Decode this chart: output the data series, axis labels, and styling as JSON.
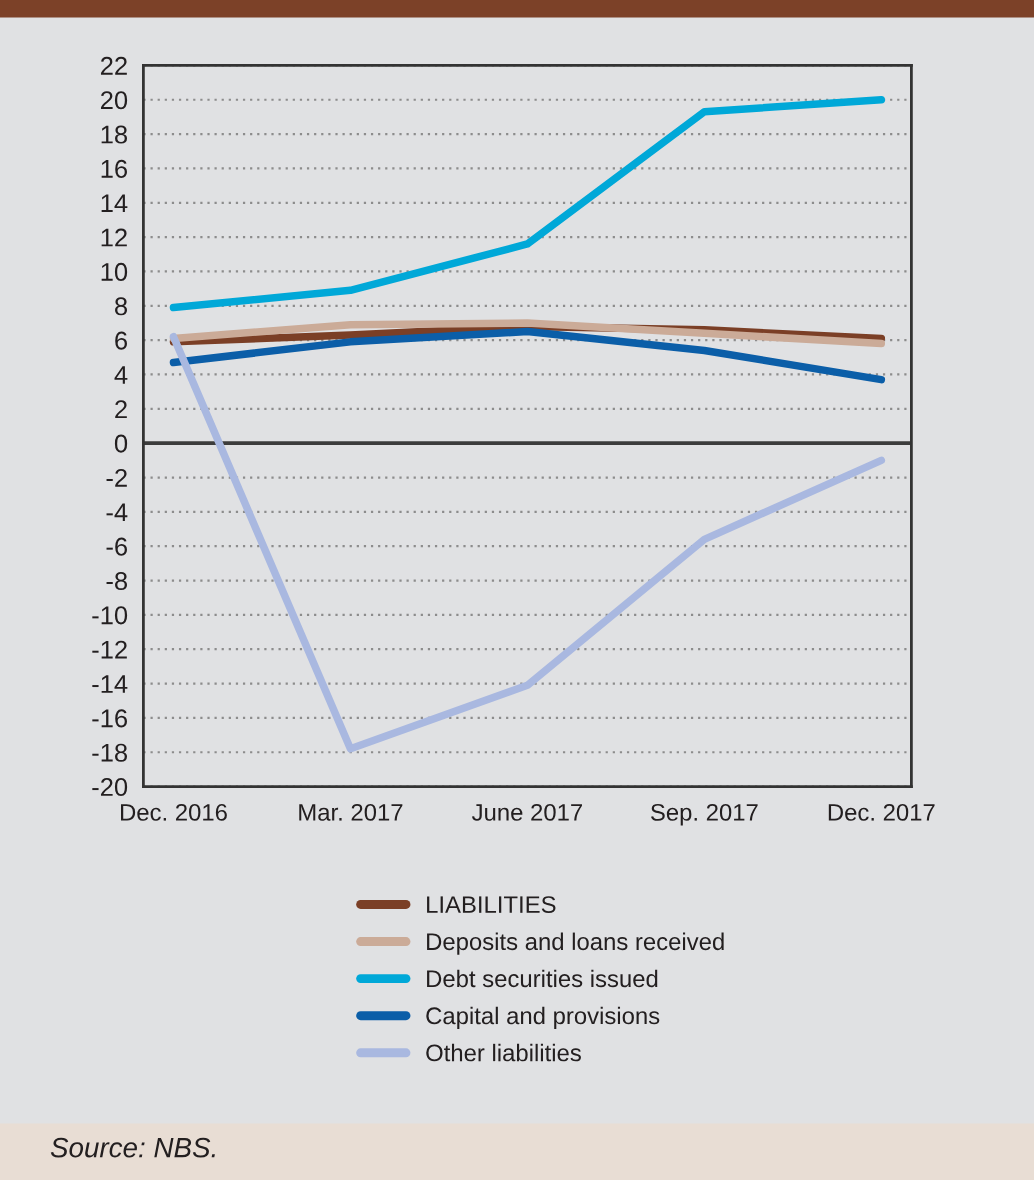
{
  "chart_data": {
    "type": "line",
    "categories": [
      "Dec. 2016",
      "Mar. 2017",
      "June 2017",
      "Sep. 2017",
      "Dec. 2017"
    ],
    "series": [
      {
        "name": "LIABILITIES",
        "color": "#7b3f26",
        "values": [
          5.9,
          6.3,
          6.8,
          6.6,
          6.1
        ]
      },
      {
        "name": "Deposits and loans received",
        "color": "#cbab98",
        "values": [
          6.1,
          6.9,
          7.0,
          6.4,
          5.8
        ]
      },
      {
        "name": "Debt securities issued",
        "color": "#00a8d8",
        "values": [
          7.9,
          8.9,
          11.6,
          19.3,
          20.0
        ]
      },
      {
        "name": "Capital and provisions",
        "color": "#0b5ea8",
        "values": [
          4.7,
          5.9,
          6.5,
          5.4,
          3.7
        ]
      },
      {
        "name": "Other liabilities",
        "color": "#a9b8e0",
        "values": [
          6.2,
          -17.8,
          -14.1,
          -5.6,
          -1.0
        ]
      }
    ],
    "ylim": [
      -20,
      22
    ],
    "yticks": [
      -20,
      -18,
      -16,
      -14,
      -12,
      -10,
      -8,
      -6,
      -4,
      -2,
      0,
      2,
      4,
      6,
      8,
      10,
      12,
      14,
      16,
      18,
      20,
      22
    ],
    "grid": "y",
    "legend": "bottom",
    "ref_lines": [
      {
        "axis": "y",
        "value": 0,
        "color": "#3c3c3c"
      }
    ],
    "annotations": [
      "Source: NBS."
    ]
  }
}
